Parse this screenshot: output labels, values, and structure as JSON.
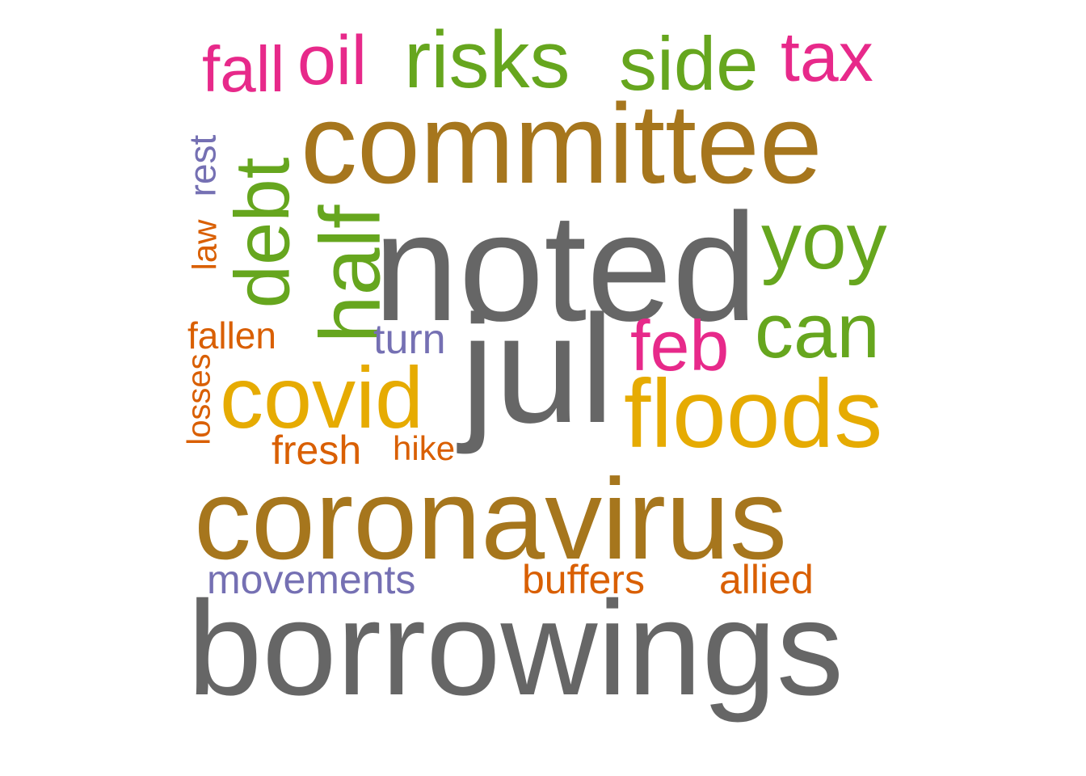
{
  "palette": {
    "gray": "#666666",
    "brown": "#a6761d",
    "green": "#66a61e",
    "magenta": "#e7298a",
    "gold": "#e6ab02",
    "orange": "#d95f02",
    "purple": "#7570b3"
  },
  "words": [
    {
      "text": "borrowings",
      "color": "#666666",
      "vertical": false
    },
    {
      "text": "coronavirus",
      "color": "#a6761d",
      "vertical": false
    },
    {
      "text": "noted",
      "color": "#666666",
      "vertical": false
    },
    {
      "text": "committee",
      "color": "#a6761d",
      "vertical": false
    },
    {
      "text": "jul",
      "color": "#666666",
      "vertical": false
    },
    {
      "text": "floods",
      "color": "#e6ab02",
      "vertical": false
    },
    {
      "text": "covid",
      "color": "#e6ab02",
      "vertical": false
    },
    {
      "text": "half",
      "color": "#66a61e",
      "vertical": true
    },
    {
      "text": "debt",
      "color": "#66a61e",
      "vertical": true
    },
    {
      "text": "risks",
      "color": "#66a61e",
      "vertical": false
    },
    {
      "text": "side",
      "color": "#66a61e",
      "vertical": false
    },
    {
      "text": "yoy",
      "color": "#66a61e",
      "vertical": false
    },
    {
      "text": "can",
      "color": "#66a61e",
      "vertical": false
    },
    {
      "text": "feb",
      "color": "#e7298a",
      "vertical": false
    },
    {
      "text": "tax",
      "color": "#e7298a",
      "vertical": false
    },
    {
      "text": "oil",
      "color": "#e7298a",
      "vertical": false
    },
    {
      "text": "fall",
      "color": "#e7298a",
      "vertical": false
    },
    {
      "text": "movements",
      "color": "#7570b3",
      "vertical": false
    },
    {
      "text": "buffers",
      "color": "#d95f02",
      "vertical": false
    },
    {
      "text": "allied",
      "color": "#d95f02",
      "vertical": false
    },
    {
      "text": "turn",
      "color": "#7570b3",
      "vertical": false
    },
    {
      "text": "fallen",
      "color": "#d95f02",
      "vertical": false
    },
    {
      "text": "fresh",
      "color": "#d95f02",
      "vertical": false
    },
    {
      "text": "hike",
      "color": "#d95f02",
      "vertical": false
    },
    {
      "text": "rest",
      "color": "#7570b3",
      "vertical": true
    },
    {
      "text": "law",
      "color": "#d95f02",
      "vertical": true
    },
    {
      "text": "losses",
      "color": "#d95f02",
      "vertical": true
    }
  ]
}
